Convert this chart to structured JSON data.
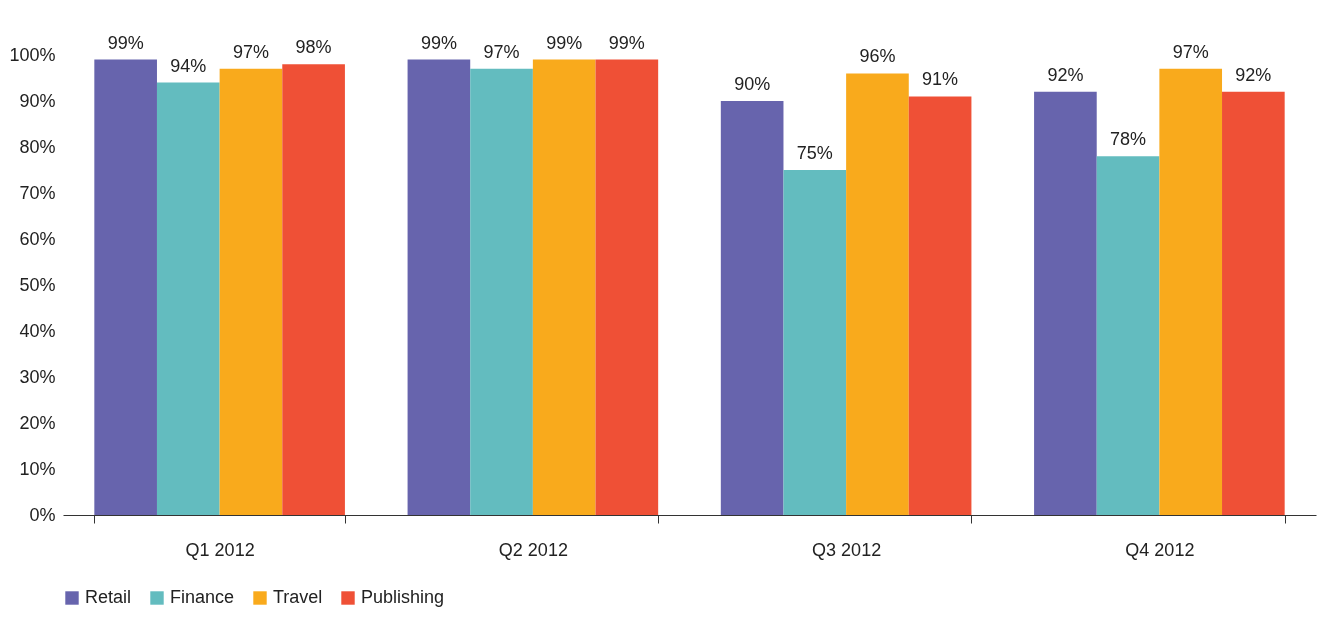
{
  "chart_data": {
    "type": "bar",
    "categories": [
      "Q1 2012",
      "Q2 2012",
      "Q3 2012",
      "Q4 2012"
    ],
    "series": [
      {
        "name": "Retail",
        "color": "#6764ad",
        "values": [
          99,
          99,
          90,
          92
        ],
        "value_labels": [
          "99%",
          "99%",
          "90%",
          "92%"
        ]
      },
      {
        "name": "Finance",
        "color": "#63bcbf",
        "values": [
          94,
          97,
          75,
          78
        ],
        "value_labels": [
          "94%",
          "97%",
          "75%",
          "78%"
        ]
      },
      {
        "name": "Travel",
        "color": "#f9aa1c",
        "values": [
          97,
          99,
          96,
          97
        ],
        "value_labels": [
          "97%",
          "99%",
          "96%",
          "97%"
        ]
      },
      {
        "name": "Publishing",
        "color": "#ef5036",
        "values": [
          98,
          99,
          91,
          92
        ],
        "value_labels": [
          "98%",
          "99%",
          "91%",
          "92%"
        ]
      }
    ],
    "ylim": [
      0,
      100
    ],
    "yticks": [
      {
        "value": 0,
        "label": "0%"
      },
      {
        "value": 10,
        "label": "10%"
      },
      {
        "value": 20,
        "label": "20%"
      },
      {
        "value": 30,
        "label": "30%"
      },
      {
        "value": 40,
        "label": "40%"
      },
      {
        "value": 50,
        "label": "50%"
      },
      {
        "value": 60,
        "label": "60%"
      },
      {
        "value": 70,
        "label": "70%"
      },
      {
        "value": 80,
        "label": "80%"
      },
      {
        "value": 90,
        "label": "90%"
      },
      {
        "value": 100,
        "label": "100%"
      }
    ],
    "grid": false,
    "legend": "bottom"
  }
}
